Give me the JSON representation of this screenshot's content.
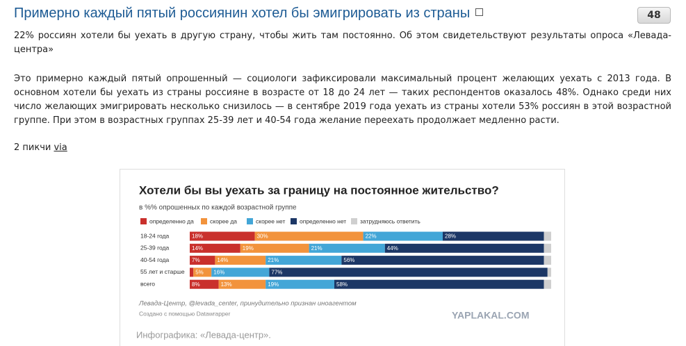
{
  "post": {
    "title": "Примерно каждый пятый россиянин хотел бы эмигрировать из страны",
    "count": 48,
    "paragraphs": [
      "22% россиян хотели бы уехать в другую страну, чтобы жить там постоянно. Об этом свидетельствуют результаты опроса «Левада-центра»",
      "Это примерно каждый пятый опрошенный — социологи зафиксировали максимальный процент желающих уехать с 2013 года. В основном хотели бы уехать из страны россияне в возрасте от 18 до 24 лет — таких респондентов оказалось 48%. Однако среди них число желающих эмигрировать несколько снизилось — в сентябре 2019 года уехать из страны хотели 53% россиян в этой возрастной группе. При этом в возрастных группах 25-39 лет и 40-54 года желание переехать продолжает медленно расти."
    ],
    "footer": "2 пикчи",
    "link": "via"
  },
  "chart": {
    "type": "stacked-bar",
    "title": "Хотели бы вы уехать за границу на постоянное жительство?",
    "subtitle": "в %% опрошенных по каждой возрастной группе",
    "categories": [
      "18-24 года",
      "25-39 года",
      "40-54 года",
      "55 лет и старше",
      "всего"
    ],
    "xlim": [
      0,
      100
    ],
    "series": [
      {
        "name": "определенно да",
        "color": "#c9302c",
        "values": [
          18,
          14,
          7,
          1,
          8
        ],
        "value_labels": [
          "18%",
          "14%",
          "7%",
          null,
          "8%"
        ]
      },
      {
        "name": "скорее да",
        "color": "#f2933c",
        "values": [
          30,
          19,
          14,
          5,
          13
        ],
        "value_labels": [
          "30%",
          "19%",
          "14%",
          "5%",
          "13%"
        ]
      },
      {
        "name": "скорее нет",
        "color": "#43a6d7",
        "values": [
          22,
          21,
          21,
          16,
          19
        ],
        "value_labels": [
          "22%",
          "21%",
          "21%",
          "16%",
          "19%"
        ]
      },
      {
        "name": "определенно нет",
        "color": "#1c3766",
        "values": [
          28,
          44,
          56,
          77,
          58
        ],
        "value_labels": [
          "28%",
          "44%",
          "56%",
          "77%",
          "58%"
        ]
      },
      {
        "name": "затрудняюсь ответить",
        "color": "#cfcfcf",
        "values": [
          2,
          2,
          2,
          1,
          2
        ]
      }
    ],
    "source": "Левада-Центр, @levada_center, принудительно признан иноагентом",
    "credit": "Создано с помощью Datawrapper",
    "watermark": "YAPLAKAL.COM",
    "caption": "Инфографика: «Левада-центр»."
  }
}
